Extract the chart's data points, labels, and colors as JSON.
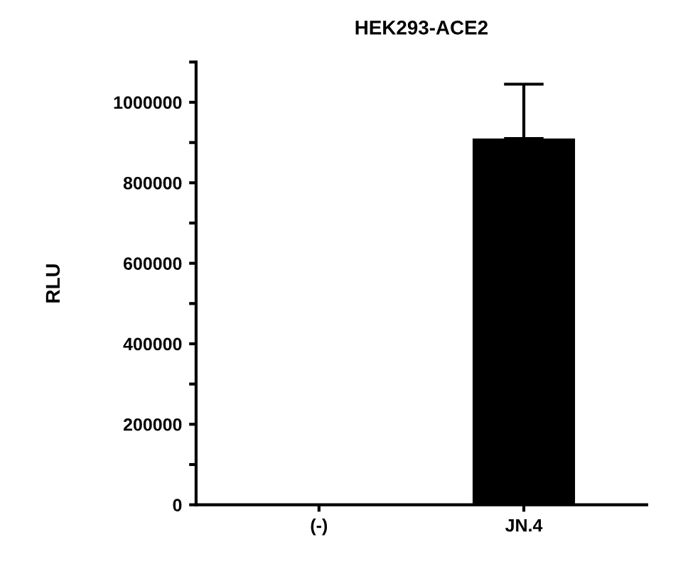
{
  "chart_data": {
    "type": "bar",
    "title": "HEK293-ACE2",
    "ylabel": "RLU",
    "categories": [
      "(-)",
      "JN.4"
    ],
    "values": [
      0,
      910000
    ],
    "errors": [
      null,
      [
        910000,
        1045000
      ]
    ],
    "color": "#000000",
    "ylim": [
      0,
      1100000
    ],
    "yticks": [
      0,
      {
        "value": 100000,
        "label": null
      },
      200000,
      {
        "value": 300000,
        "label": null
      },
      400000,
      {
        "value": 500000,
        "label": null
      },
      600000,
      {
        "value": 700000,
        "label": null
      },
      800000,
      {
        "value": 900000,
        "label": null
      },
      1000000,
      {
        "value": 1100000,
        "label": null
      }
    ],
    "grid": false,
    "legend": false
  }
}
